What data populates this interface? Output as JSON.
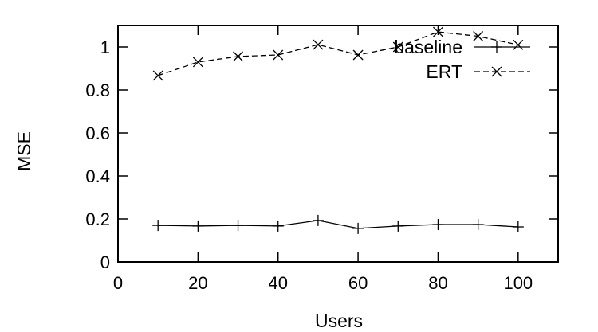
{
  "chart_data": {
    "type": "line",
    "title": "",
    "xlabel": "Users",
    "ylabel": "MSE",
    "x": [
      10,
      20,
      30,
      40,
      50,
      60,
      70,
      80,
      90,
      100
    ],
    "xlim": [
      0,
      110
    ],
    "ylim": [
      0,
      1.1
    ],
    "xticks": [
      0,
      20,
      40,
      60,
      80,
      100
    ],
    "yticks": [
      0,
      0.2,
      0.4,
      0.6,
      0.8,
      1
    ],
    "xtick_labels": [
      "0",
      "20",
      "40",
      "60",
      "80",
      "100"
    ],
    "ytick_labels": [
      "0",
      "0.2",
      "0.4",
      "0.6",
      "0.8",
      "1"
    ],
    "grid": false,
    "legend_position": "top-right (inside)",
    "series": [
      {
        "name": "baseline",
        "style": "solid",
        "marker": "plus",
        "values": [
          0.17,
          0.167,
          0.17,
          0.167,
          0.193,
          0.156,
          0.167,
          0.174,
          0.174,
          0.163
        ]
      },
      {
        "name": "ERT",
        "style": "dashed",
        "marker": "cross",
        "values": [
          0.867,
          0.93,
          0.956,
          0.963,
          1.011,
          0.963,
          1.0,
          1.07,
          1.05,
          1.01
        ]
      }
    ]
  }
}
